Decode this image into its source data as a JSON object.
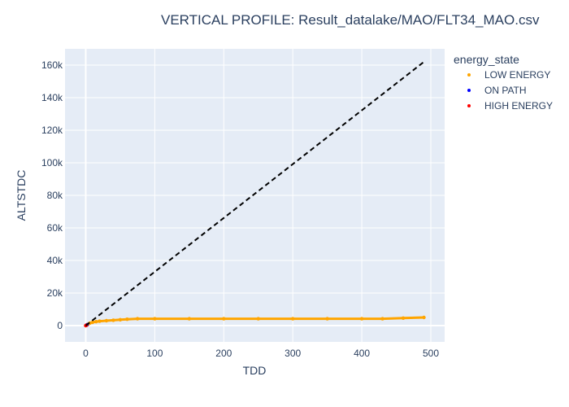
{
  "chart_data": {
    "type": "scatter",
    "title": "VERTICAL PROFILE: Result_datalake/MAO/FLT34_MAO.csv",
    "xlabel": "TDD",
    "ylabel": "ALTSTDC",
    "xlim": [
      -30,
      520
    ],
    "ylim": [
      -10000,
      170000
    ],
    "x_ticks": [
      0,
      100,
      200,
      300,
      400,
      500
    ],
    "y_ticks": [
      0,
      20000,
      40000,
      60000,
      80000,
      100000,
      120000,
      140000,
      160000
    ],
    "y_tick_labels": [
      "0",
      "20k",
      "40k",
      "60k",
      "80k",
      "100k",
      "120k",
      "140k",
      "160k"
    ],
    "grid": true,
    "legend": {
      "title": "energy_state",
      "placement": "top-right outside",
      "entries": [
        {
          "name": "LOW ENERGY",
          "color": "#ffa500"
        },
        {
          "name": "ON PATH",
          "color": "#0000ff"
        },
        {
          "name": "HIGH ENERGY",
          "color": "#ff0000"
        }
      ]
    },
    "series": [
      {
        "name": "LOW ENERGY",
        "mode": "markers",
        "color": "#ffa500",
        "x": [
          0,
          3,
          6,
          10,
          15,
          20,
          30,
          40,
          50,
          60,
          75,
          100,
          150,
          200,
          250,
          300,
          350,
          400,
          430,
          460,
          490
        ],
        "y": [
          0,
          800,
          1500,
          2000,
          2400,
          2700,
          3000,
          3300,
          3600,
          3900,
          4200,
          4200,
          4200,
          4200,
          4200,
          4200,
          4200,
          4200,
          4200,
          4600,
          5000
        ]
      },
      {
        "name": "ON PATH",
        "mode": "markers",
        "color": "#0000ff",
        "x": [
          1,
          2
        ],
        "y": [
          300,
          500
        ]
      },
      {
        "name": "HIGH ENERGY",
        "mode": "markers",
        "color": "#ff0000",
        "x": [
          0,
          1
        ],
        "y": [
          0,
          200
        ]
      },
      {
        "mode": "lines",
        "line_style": "dashed",
        "color": "#000000",
        "x": [
          0,
          490
        ],
        "y": [
          0,
          162000
        ]
      }
    ]
  }
}
